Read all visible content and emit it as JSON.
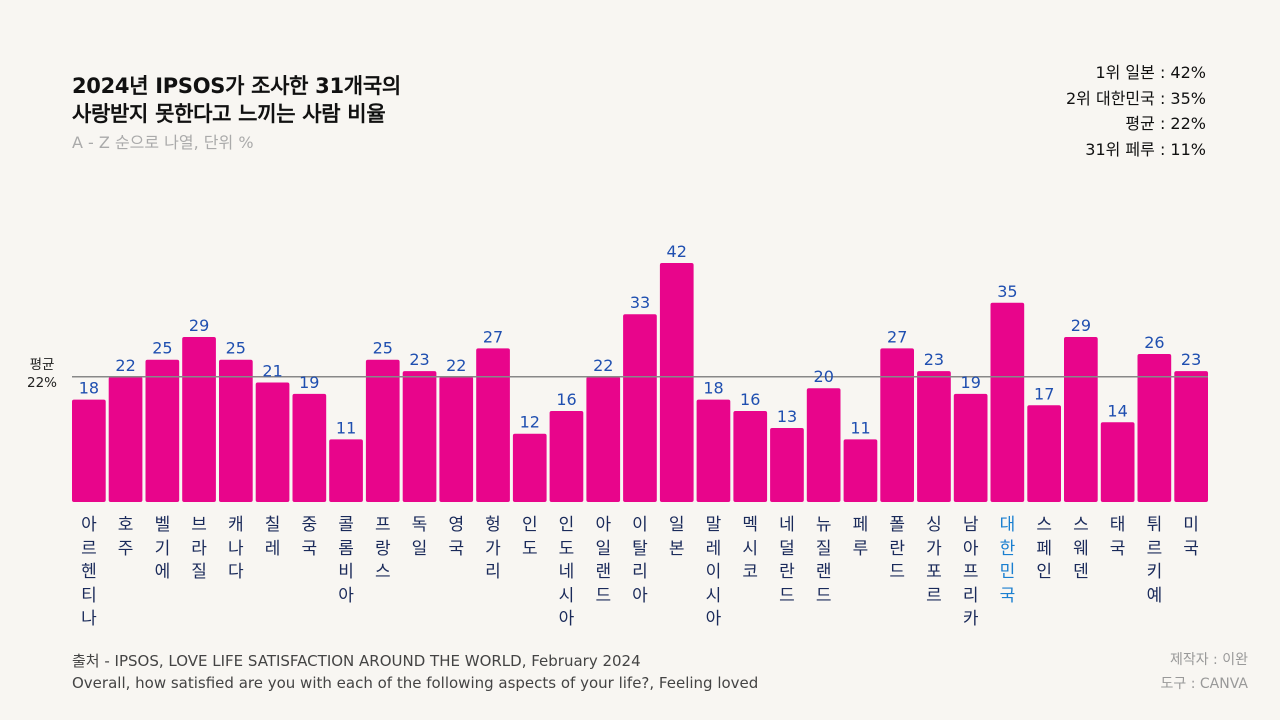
{
  "header": {
    "title_line1": "2024년 IPSOS가 조사한 31개국의",
    "title_line2": "사랑받지 못한다고 느끼는 사람 비율",
    "subtitle": "A - Z 순으로 나열, 단위 %"
  },
  "stats": [
    "1위 일본 : 42%",
    "2위 대한민국 : 35%",
    "평균 : 22%",
    "31위 페루 : 11%"
  ],
  "avg_label": {
    "line1": "평균",
    "line2": "22%"
  },
  "footer": {
    "source_line1": "출처 - IPSOS, LOVE LIFE SATISFACTION AROUND THE WORLD, February 2024",
    "source_line2": "Overall, how satisfied are you with each of the following aspects of your life?, Feeling loved",
    "credit_line1": "제작자 : 이완",
    "credit_line2": "도구 : CANVA"
  },
  "colors": {
    "bar": "#e8058b",
    "value_label": "#1f4fb0",
    "avg_line": "#888888",
    "highlight_label": "#1a7fd0",
    "category_label": "#1a2a5a"
  },
  "chart_data": {
    "type": "bar",
    "title": "2024년 IPSOS가 조사한 31개국의 사랑받지 못한다고 느끼는 사람 비율",
    "subtitle": "A - Z 순으로 나열, 단위 %",
    "xlabel": "",
    "ylabel": "",
    "ylim": [
      0,
      42
    ],
    "grid": false,
    "legend": "none",
    "reference_line": {
      "label": "평균 22%",
      "value": 22
    },
    "highlight_category": "대한민국",
    "categories": [
      "아르헨티나",
      "호주",
      "벨기에",
      "브라질",
      "캐나다",
      "칠레",
      "중국",
      "콜롬비아",
      "프랑스",
      "독일",
      "영국",
      "헝가리",
      "인도",
      "인도네시아",
      "아일랜드",
      "이탈리아",
      "일본",
      "말레이시아",
      "멕시코",
      "네덜란드",
      "뉴질랜드",
      "페루",
      "폴란드",
      "싱가포르",
      "남아프리카",
      "대한민국",
      "스페인",
      "스웨덴",
      "태국",
      "튀르키예",
      "미국"
    ],
    "values": [
      18,
      22,
      25,
      29,
      25,
      21,
      19,
      11,
      25,
      23,
      22,
      27,
      12,
      16,
      22,
      33,
      42,
      18,
      16,
      13,
      20,
      11,
      27,
      23,
      19,
      35,
      17,
      29,
      14,
      26,
      23
    ]
  }
}
